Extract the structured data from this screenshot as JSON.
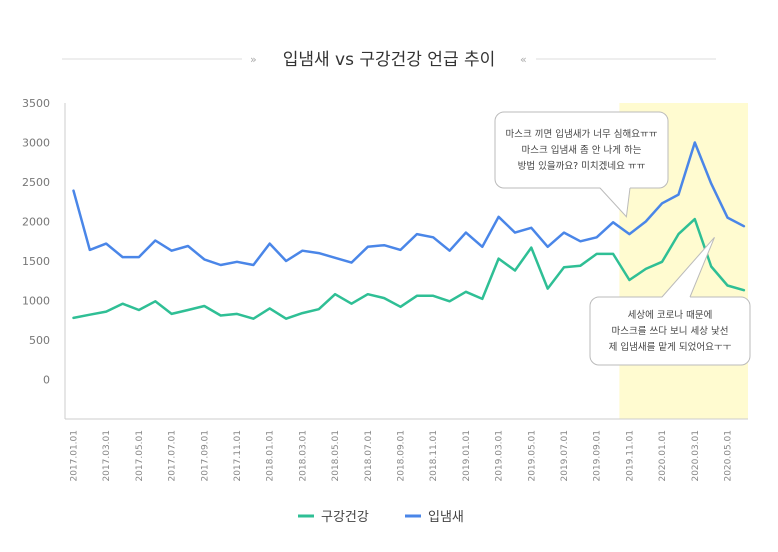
{
  "chart_data": {
    "type": "line",
    "title": "입냄새 vs 구강건강 언급 추이",
    "ylim": [
      -500,
      3500
    ],
    "yticks": [
      0,
      500,
      1000,
      1500,
      2000,
      2500,
      3000,
      3500
    ],
    "x": [
      "2017.01.01",
      "2017.02.01",
      "2017.03.01",
      "2017.04.01",
      "2017.05.01",
      "2017.06.01",
      "2017.07.01",
      "2017.08.01",
      "2017.09.01",
      "2017.10.01",
      "2017.11.01",
      "2017.12.01",
      "2018.01.01",
      "2018.02.01",
      "2018.03.01",
      "2018.04.01",
      "2018.05.01",
      "2018.06.01",
      "2018.07.01",
      "2018.08.01",
      "2018.09.01",
      "2018.10.01",
      "2018.11.01",
      "2018.12.01",
      "2019.01.01",
      "2019.02.01",
      "2019.03.01",
      "2019.04.01",
      "2019.05.01",
      "2019.06.01",
      "2019.07.01",
      "2019.08.01",
      "2019.09.01",
      "2019.10.01",
      "2019.11.01",
      "2019.12.01",
      "2020.01.01",
      "2020.02.01",
      "2020.03.01",
      "2020.04.01",
      "2020.05.01",
      "2020.06.01"
    ],
    "xtick_labels": [
      "2017.01.01",
      "2017.03.01",
      "2017.05.01",
      "2017.07.01",
      "2017.09.01",
      "2017.11.01",
      "2018.01.01",
      "2018.03.01",
      "2018.05.01",
      "2018.07.01",
      "2018.09.01",
      "2018.11.01",
      "2019.01.01",
      "2019.03.01",
      "2019.05.01",
      "2019.07.01",
      "2019.09.01",
      "2019.11.01",
      "2020.01.01",
      "2020.03.01",
      "2020.05.01"
    ],
    "series": [
      {
        "name": "구강건강",
        "color": "#2fbf95",
        "values": [
          780,
          820,
          860,
          960,
          880,
          990,
          830,
          880,
          930,
          810,
          830,
          770,
          900,
          770,
          840,
          890,
          1080,
          960,
          1080,
          1030,
          920,
          1060,
          1060,
          990,
          1110,
          1020,
          1530,
          1380,
          1670,
          1150,
          1420,
          1440,
          1590,
          1590,
          1260,
          1400,
          1490,
          1840,
          2030,
          1430,
          1190,
          1130
        ]
      },
      {
        "name": "입냄새",
        "color": "#4a86e8",
        "values": [
          2390,
          1640,
          1720,
          1550,
          1550,
          1760,
          1630,
          1690,
          1520,
          1450,
          1490,
          1450,
          1720,
          1500,
          1630,
          1600,
          1540,
          1480,
          1680,
          1700,
          1640,
          1840,
          1800,
          1630,
          1860,
          1680,
          2060,
          1860,
          1920,
          1680,
          1860,
          1750,
          1800,
          1990,
          1840,
          2000,
          2230,
          2340,
          3000,
          2480,
          2050,
          1940
        ]
      }
    ],
    "highlight_range": [
      "2019.11.01",
      "2020.06.01"
    ],
    "highlight_color": "#fffbd0",
    "grid": false,
    "legend_position": "bottom-center",
    "annotations": [
      {
        "lines": [
          "마스크 끼면 입냄새가 너무 심해요ㅠㅠ",
          "마스크 입냄새 좀 안 나게 하는",
          "방법 있을까요? 미치겠네요 ㅠㅠ"
        ]
      },
      {
        "lines": [
          "세상에 코로나 때문에",
          "마스크를 쓰다 보니 세상 낯선",
          "제 입냄새를 맡게 되었어요ㅜㅜ"
        ]
      }
    ]
  }
}
